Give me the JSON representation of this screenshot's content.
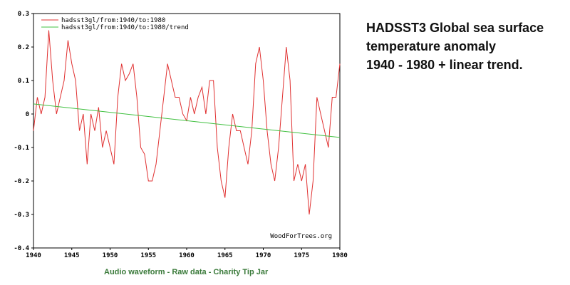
{
  "chart_data": {
    "type": "line",
    "annotation": "WoodForTrees.org",
    "xlim": [
      1940,
      1980
    ],
    "xticks": [
      1940,
      1945,
      1950,
      1955,
      1960,
      1965,
      1970,
      1975,
      1980
    ],
    "ylim": [
      -0.4,
      0.3
    ],
    "yticks": [
      0.3,
      0.2,
      0.1,
      0,
      -0.1,
      -0.2,
      -0.3,
      -0.4
    ],
    "legend": "upper left",
    "series": [
      {
        "name": "hadsst3gl/from:1940/to:1980",
        "color": "#e03030",
        "x": [
          1940,
          1940.5,
          1941,
          1941.5,
          1942,
          1942.5,
          1943,
          1943.5,
          1944,
          1944.5,
          1945,
          1945.5,
          1946,
          1946.5,
          1947,
          1947.5,
          1948,
          1948.5,
          1949,
          1949.5,
          1950,
          1950.5,
          1951,
          1951.5,
          1952,
          1952.5,
          1953,
          1953.5,
          1954,
          1954.5,
          1955,
          1955.5,
          1956,
          1956.5,
          1957,
          1957.5,
          1958,
          1958.5,
          1959,
          1959.5,
          1960,
          1960.5,
          1961,
          1961.5,
          1962,
          1962.5,
          1963,
          1963.5,
          1964,
          1964.5,
          1965,
          1965.5,
          1966,
          1966.5,
          1967,
          1967.5,
          1968,
          1968.5,
          1969,
          1969.5,
          1970,
          1970.5,
          1971,
          1971.5,
          1972,
          1972.5,
          1973,
          1973.5,
          1974,
          1974.5,
          1975,
          1975.5,
          1976,
          1976.5,
          1977,
          1977.5,
          1978,
          1978.5,
          1979,
          1979.5,
          1980
        ],
        "values": [
          -0.05,
          0.05,
          0.0,
          0.05,
          0.25,
          0.1,
          0.0,
          0.05,
          0.1,
          0.22,
          0.15,
          0.1,
          -0.05,
          0.0,
          -0.15,
          0.0,
          -0.05,
          0.02,
          -0.1,
          -0.05,
          -0.1,
          -0.15,
          0.05,
          0.15,
          0.1,
          0.12,
          0.15,
          0.05,
          -0.1,
          -0.12,
          -0.2,
          -0.2,
          -0.15,
          -0.05,
          0.05,
          0.15,
          0.1,
          0.05,
          0.05,
          0.0,
          -0.02,
          0.05,
          0.0,
          0.05,
          0.08,
          0.0,
          0.1,
          0.1,
          -0.1,
          -0.2,
          -0.25,
          -0.1,
          0.0,
          -0.05,
          -0.05,
          -0.1,
          -0.15,
          -0.05,
          0.15,
          0.2,
          0.1,
          -0.05,
          -0.15,
          -0.2,
          -0.1,
          0.05,
          0.2,
          0.1,
          -0.2,
          -0.15,
          -0.2,
          -0.15,
          -0.3,
          -0.2,
          0.05,
          0.0,
          -0.05,
          -0.1,
          0.05,
          0.05,
          0.15
        ]
      },
      {
        "name": "hadsst3gl/from:1940/to:1980/trend",
        "color": "#40c040",
        "x": [
          1940,
          1980
        ],
        "values": [
          0.03,
          -0.07
        ]
      }
    ]
  },
  "description": [
    "HADSST3 Global sea surface",
    "temperature anomaly",
    "1940 - 1980 + linear trend."
  ],
  "footer": "Audio waveform - Raw data - Charity Tip Jar"
}
